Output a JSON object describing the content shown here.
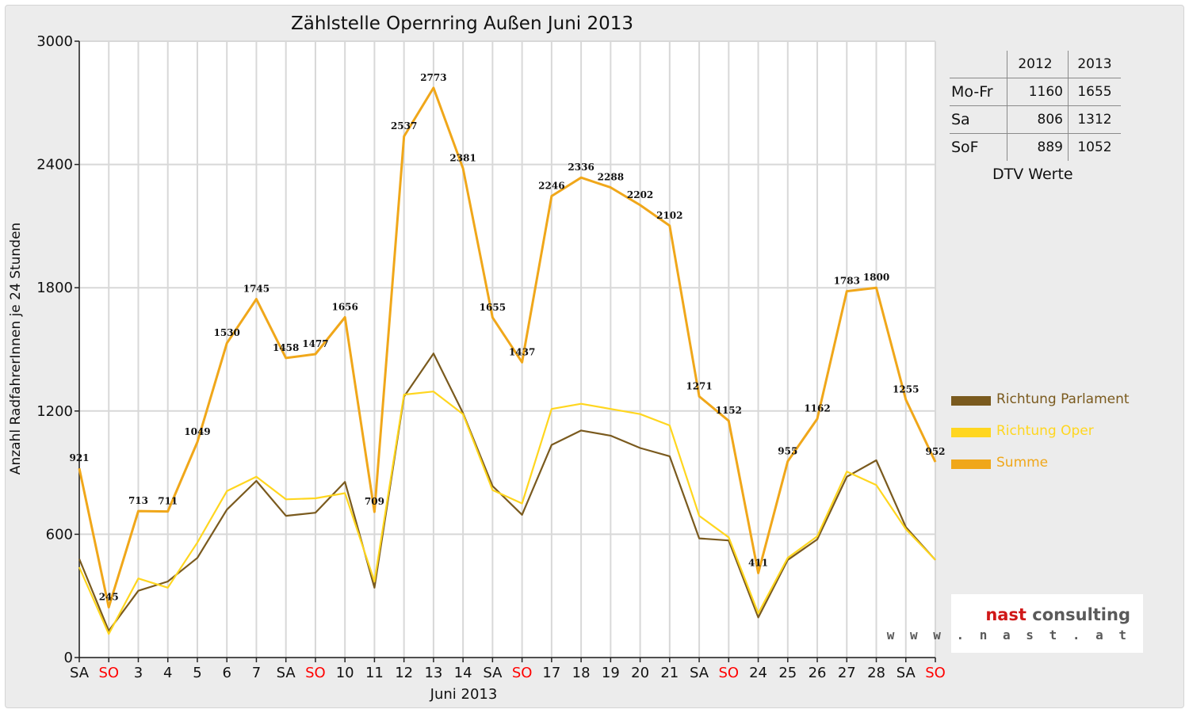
{
  "chart_data": {
    "type": "line",
    "title": "Zählstelle Opernring Außen Juni 2013",
    "ylabel": "Anzahl RadfahrerInnen je 24 Stunden",
    "xlabel": "Juni 2013",
    "ylim": [
      0,
      3000
    ],
    "yticks": [
      "0",
      "600",
      "1200",
      "1800",
      "2400",
      "3000"
    ],
    "ytick_values": [
      0,
      600,
      1200,
      1800,
      2400,
      3000
    ],
    "grid": true,
    "categories": [
      "SA",
      "SO",
      "3",
      "4",
      "5",
      "6",
      "7",
      "SA",
      "SO",
      "10",
      "11",
      "12",
      "13",
      "14",
      "SA",
      "SO",
      "17",
      "18",
      "19",
      "20",
      "21",
      "SA",
      "SO",
      "24",
      "25",
      "26",
      "27",
      "28",
      "SA",
      "SO"
    ],
    "weekend_label_color": "#ff0000",
    "weekend_labels": [
      "SO"
    ],
    "series": [
      {
        "name": "Richtung Parlament",
        "color": "#7a5a1e",
        "values": [
          480,
          130,
          325,
          370,
          485,
          720,
          860,
          690,
          705,
          855,
          340,
          1270,
          1480,
          1190,
          835,
          695,
          1035,
          1105,
          1080,
          1020,
          980,
          580,
          570,
          195,
          475,
          575,
          880,
          960,
          635,
          475
        ]
      },
      {
        "name": "Richtung Oper",
        "color": "#ffd61f",
        "values": [
          440,
          115,
          385,
          340,
          560,
          810,
          880,
          770,
          775,
          800,
          370,
          1280,
          1295,
          1185,
          815,
          750,
          1210,
          1235,
          1210,
          1185,
          1130,
          690,
          585,
          215,
          485,
          590,
          905,
          840,
          625,
          475
        ]
      },
      {
        "name": "Summe",
        "color": "#f0a71a",
        "values": [
          921,
          245,
          713,
          711,
          1049,
          1530,
          1745,
          1458,
          1477,
          1656,
          709,
          2537,
          2773,
          2381,
          1655,
          1437,
          2246,
          2336,
          2288,
          2202,
          2102,
          1271,
          1152,
          411,
          955,
          1162,
          1783,
          1800,
          1255,
          952
        ]
      }
    ],
    "data_labels": [
      "921",
      "245",
      "713",
      "711",
      "1049",
      "1530",
      "1745",
      "1458",
      "1477",
      "1656",
      "709",
      "2537",
      "2773",
      "2381",
      "1655",
      "1437",
      "2246",
      "2336",
      "2288",
      "2202",
      "2102",
      "1271",
      "1152",
      "411",
      "955",
      "1162",
      "1783",
      "1800",
      "1255",
      "952"
    ],
    "legend_position": "right"
  },
  "dtv_table": {
    "headers": [
      "2012",
      "2013"
    ],
    "rows": [
      {
        "label": "Mo-Fr",
        "v2012": "1160",
        "v2013": "1655"
      },
      {
        "label": "Sa",
        "v2012": "806",
        "v2013": "1312"
      },
      {
        "label": "SoF",
        "v2012": "889",
        "v2013": "1052"
      }
    ],
    "caption": "DTV Werte"
  },
  "logo": {
    "brand": "nast",
    "word": "consulting",
    "url": "w w w . n a s t . a t"
  }
}
